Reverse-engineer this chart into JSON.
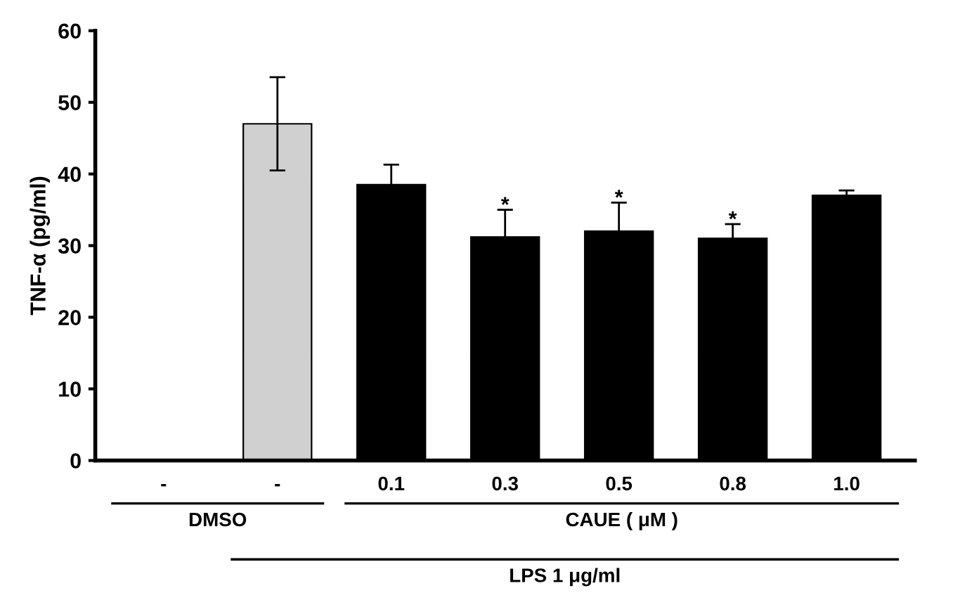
{
  "chart_data": {
    "type": "bar",
    "ylabel": "TNF-α (pg/ml)",
    "categories": [
      "-",
      "-",
      "0.1",
      "0.3",
      "0.5",
      "0.8",
      "1.0"
    ],
    "values": [
      0,
      47,
      38.5,
      31.2,
      32,
      31,
      37
    ],
    "errors": [
      null,
      6.5,
      2.8,
      3.8,
      4,
      2,
      0.7
    ],
    "colors": [
      "#000000",
      "#d0d0d0",
      "#000000",
      "#000000",
      "#000000",
      "#000000",
      "#000000"
    ],
    "ylim": [
      0,
      60
    ],
    "yticks": [
      0,
      10,
      20,
      30,
      40,
      50,
      60
    ],
    "grid": false,
    "legend": false,
    "annotations": [
      {
        "text": "*",
        "x": "0.3",
        "y": 35.5
      },
      {
        "text": "*",
        "x": "0.5",
        "y": 36.5
      },
      {
        "text": "*",
        "x": "0.8",
        "y": 33.5
      },
      "DMSO",
      "CAUE ( μM )",
      "LPS 1 μg/ml"
    ]
  }
}
